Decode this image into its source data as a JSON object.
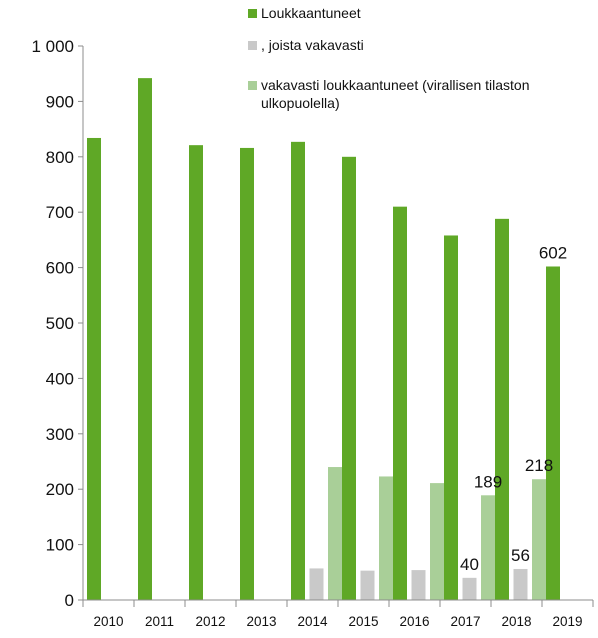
{
  "chart_data": {
    "type": "bar",
    "categories": [
      "2010",
      "2011",
      "2012",
      "2013",
      "2014",
      "2015",
      "2016",
      "2017",
      "2018",
      "2019"
    ],
    "series": [
      {
        "name": "Loukkaantuneet",
        "color": "#5fa826",
        "values": [
          834,
          942,
          821,
          816,
          827,
          800,
          710,
          658,
          688,
          602
        ]
      },
      {
        "name": ", joista vakavasti",
        "color": "#c9c9c9",
        "values": [
          null,
          null,
          null,
          null,
          57,
          53,
          54,
          40,
          56,
          null
        ]
      },
      {
        "name": "vakavasti loukkaantuneet (virallisen tilaston ulkopuolella)",
        "color": "#a9cf98",
        "values": [
          null,
          null,
          null,
          null,
          240,
          223,
          211,
          189,
          218,
          null
        ]
      }
    ],
    "legend_lines": [
      [
        "Loukkaantuneet"
      ],
      [
        ", joista vakavasti"
      ],
      [
        "vakavasti loukkaantuneet (virallisen tilaston",
        "ulkopuolella)"
      ]
    ],
    "legend_position": "top-right",
    "data_labels": [
      {
        "series": 0,
        "category": "2019",
        "text": "602"
      },
      {
        "series": 1,
        "category": "2017",
        "text": "40"
      },
      {
        "series": 1,
        "category": "2018",
        "text": "56"
      },
      {
        "series": 2,
        "category": "2017",
        "text": "189"
      },
      {
        "series": 2,
        "category": "2018",
        "text": "218"
      }
    ],
    "yticks": [
      0,
      100,
      200,
      300,
      400,
      500,
      600,
      700,
      800,
      900,
      1000
    ],
    "ytick_labels": [
      "0",
      "100",
      "200",
      "300",
      "400",
      "500",
      "600",
      "700",
      "800",
      "900",
      "1 000"
    ],
    "ylim": [
      0,
      1000
    ],
    "title": "",
    "xlabel": "",
    "ylabel": "",
    "grid": false
  }
}
